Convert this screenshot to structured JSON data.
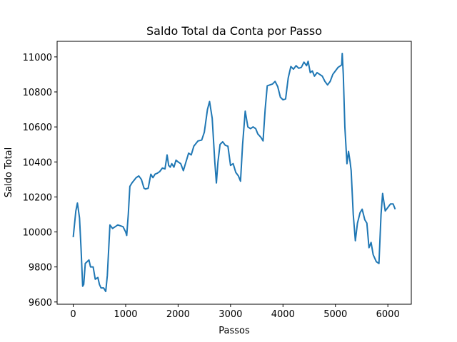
{
  "chart_data": {
    "type": "line",
    "title": "Saldo Total da Conta por Passo",
    "xlabel": "Passos",
    "ylabel": "Saldo Total",
    "x": [
      0,
      50,
      80,
      120,
      150,
      180,
      200,
      230,
      300,
      330,
      380,
      420,
      470,
      500,
      530,
      580,
      620,
      650,
      700,
      750,
      800,
      850,
      950,
      1000,
      1020,
      1050,
      1080,
      1120,
      1200,
      1250,
      1300,
      1350,
      1380,
      1430,
      1480,
      1520,
      1560,
      1600,
      1650,
      1700,
      1750,
      1790,
      1820,
      1850,
      1880,
      1920,
      1960,
      2000,
      2050,
      2100,
      2150,
      2200,
      2250,
      2300,
      2380,
      2450,
      2500,
      2560,
      2600,
      2650,
      2700,
      2730,
      2760,
      2800,
      2850,
      2900,
      2950,
      3000,
      3050,
      3100,
      3150,
      3190,
      3230,
      3280,
      3330,
      3380,
      3430,
      3480,
      3520,
      3580,
      3620,
      3660,
      3700,
      3750,
      3800,
      3850,
      3900,
      3950,
      4000,
      4050,
      4100,
      4150,
      4200,
      4250,
      4300,
      4350,
      4400,
      4450,
      4480,
      4520,
      4560,
      4600,
      4650,
      4700,
      4750,
      4800,
      4850,
      4900,
      4950,
      5000,
      5050,
      5100,
      5120,
      5130,
      5150,
      5180,
      5220,
      5250,
      5280,
      5300,
      5340,
      5380,
      5420,
      5470,
      5510,
      5560,
      5600,
      5640,
      5680,
      5720,
      5780,
      5830,
      5870,
      5900,
      5950,
      6000,
      6050,
      6100,
      6140
    ],
    "series": [
      {
        "name": "Saldo Total",
        "color": "#1f77b4",
        "values": [
          9970,
          10120,
          10165,
          10080,
          9900,
          9690,
          9700,
          9820,
          9840,
          9800,
          9800,
          9730,
          9740,
          9700,
          9680,
          9680,
          9660,
          9750,
          10040,
          10020,
          10030,
          10040,
          10030,
          10000,
          9980,
          10100,
          10260,
          10280,
          10310,
          10320,
          10300,
          10250,
          10245,
          10250,
          10330,
          10310,
          10330,
          10335,
          10345,
          10365,
          10360,
          10440,
          10380,
          10370,
          10390,
          10370,
          10410,
          10400,
          10390,
          10350,
          10400,
          10450,
          10440,
          10490,
          10520,
          10525,
          10570,
          10700,
          10745,
          10650,
          10400,
          10280,
          10400,
          10500,
          10515,
          10495,
          10490,
          10380,
          10390,
          10340,
          10320,
          10290,
          10500,
          10690,
          10600,
          10590,
          10600,
          10590,
          10560,
          10540,
          10520,
          10700,
          10835,
          10840,
          10845,
          10860,
          10830,
          10770,
          10755,
          10760,
          10880,
          10945,
          10930,
          10950,
          10935,
          10940,
          10970,
          10950,
          10975,
          10910,
          10920,
          10890,
          10910,
          10900,
          10890,
          10860,
          10840,
          10860,
          10900,
          10920,
          10940,
          10950,
          10955,
          11020,
          10900,
          10600,
          10390,
          10460,
          10400,
          10350,
          10100,
          9950,
          10050,
          10110,
          10130,
          10070,
          10050,
          9910,
          9940,
          9870,
          9830,
          9820,
          10100,
          10220,
          10120,
          10140,
          10160,
          10160,
          10130
        ]
      }
    ],
    "xlim": [
      -307,
      6447
    ],
    "ylim": [
      9587,
      11089
    ],
    "xticks": [
      0,
      1000,
      2000,
      3000,
      4000,
      5000,
      6000
    ],
    "yticks": [
      9600,
      9800,
      10000,
      10200,
      10400,
      10600,
      10800,
      11000
    ]
  }
}
